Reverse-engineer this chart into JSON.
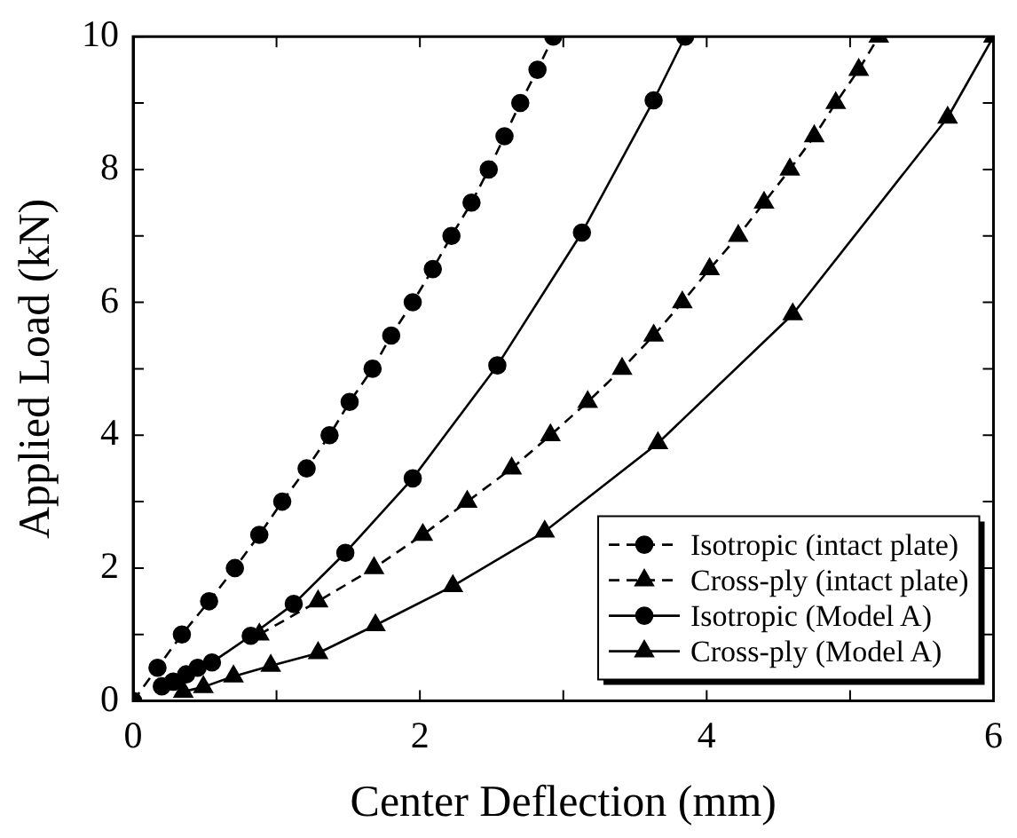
{
  "chart_data": {
    "type": "line",
    "xlabel": "Center Deflection (mm)",
    "ylabel": "Applied Load (kN)",
    "xlim": [
      0,
      6
    ],
    "ylim": [
      0,
      10
    ],
    "xticks": [
      0,
      {
        "value": 1,
        "label": null
      },
      2,
      {
        "value": 3,
        "label": null
      },
      4,
      {
        "value": 5,
        "label": null
      },
      6
    ],
    "yticks": [
      {
        "value": 0,
        "label": "0"
      },
      {
        "value": 1,
        "label": null
      },
      2,
      {
        "value": 3,
        "label": null
      },
      4,
      {
        "value": 5,
        "label": null
      },
      6,
      {
        "value": 7,
        "label": null
      },
      8,
      {
        "value": 9,
        "label": null
      },
      10
    ],
    "grid": false,
    "legend": "bottom right",
    "series": [
      {
        "name": "Isotropic (intact plate)",
        "color": "#000000",
        "line_style": "dashed",
        "marker": "circle",
        "x": [
          0,
          0.17,
          0.34,
          0.53,
          0.71,
          0.88,
          1.04,
          1.21,
          1.37,
          1.51,
          1.67,
          1.8,
          1.95,
          2.09,
          2.22,
          2.36,
          2.48,
          2.59,
          2.7,
          2.82,
          2.93
        ],
        "values": [
          0,
          0.5,
          1,
          1.5,
          2,
          2.5,
          3,
          3.5,
          4,
          4.5,
          5,
          5.5,
          6,
          6.5,
          7,
          7.5,
          8,
          8.5,
          9,
          9.5,
          10
        ]
      },
      {
        "name": "Cross-ply (intact plate)",
        "color": "#000000",
        "line_style": "dashed",
        "marker": "triangle",
        "x": [
          0.88,
          1.29,
          1.68,
          2.02,
          2.33,
          2.64,
          2.91,
          3.17,
          3.41,
          3.63,
          3.83,
          4.02,
          4.22,
          4.4,
          4.58,
          4.75,
          4.9,
          5.06,
          5.2
        ],
        "values": [
          1,
          1.5,
          2,
          2.5,
          3,
          3.5,
          4,
          4.5,
          5,
          5.5,
          6,
          6.5,
          7,
          7.5,
          8,
          8.5,
          9,
          9.5,
          10
        ]
      },
      {
        "name": "Isotropic (Model A)",
        "color": "#000000",
        "line_style": "solid",
        "marker": "circle",
        "x": [
          0.2,
          0.28,
          0.37,
          0.45,
          0.55,
          0.82,
          1.12,
          1.48,
          1.95,
          2.54,
          3.13,
          3.63,
          3.85
        ],
        "values": [
          0.22,
          0.29,
          0.4,
          0.5,
          0.58,
          0.98,
          1.46,
          2.23,
          3.35,
          5.05,
          7.05,
          9.04,
          10
        ]
      },
      {
        "name": "Cross-ply (Model A)",
        "color": "#000000",
        "line_style": "solid",
        "marker": "triangle",
        "x": [
          0,
          0.2,
          0.35,
          0.49,
          0.7,
          0.96,
          1.29,
          1.69,
          2.23,
          2.87,
          3.66,
          4.6,
          5.68,
          6
        ],
        "values": [
          0,
          null,
          0.14,
          0.21,
          0.37,
          0.53,
          0.72,
          1.14,
          1.73,
          2.55,
          3.88,
          5.82,
          8.78,
          10
        ]
      }
    ]
  }
}
